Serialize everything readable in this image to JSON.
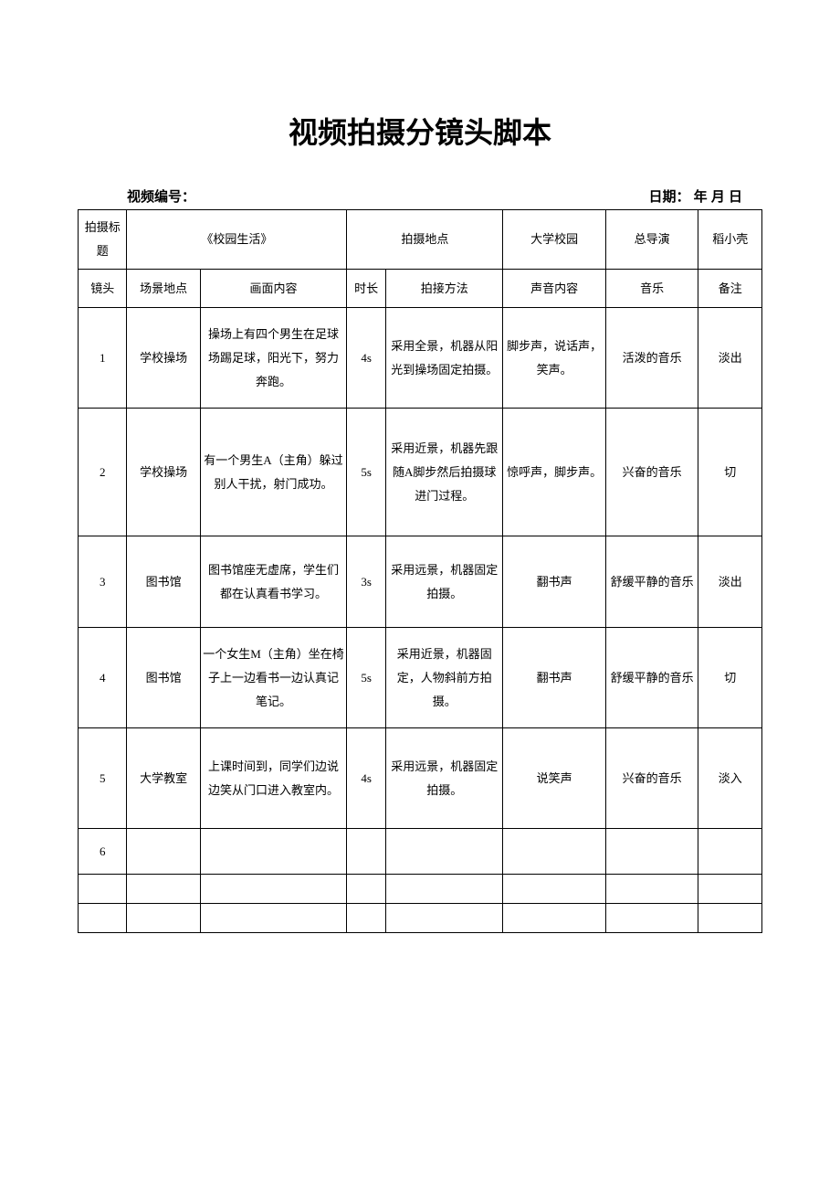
{
  "doc_title": "视频拍摄分镜头脚本",
  "info_label_left": "视频编号：",
  "info_label_right": "日期：  年 月 日",
  "meta": {
    "shoot_title_label": "拍摄标题",
    "shoot_title_value": "《校园生活》",
    "shoot_location_label": "拍摄地点",
    "shoot_location_value": "大学校园",
    "director_label": "总导演",
    "director_value": "稻小壳"
  },
  "columns": {
    "shot": "镜头",
    "location": "场景地点",
    "content": "画面内容",
    "duration": "时长",
    "method": "拍接方法",
    "sound": "声音内容",
    "music": "音乐",
    "note": "备注"
  },
  "rows": [
    {
      "shot": "1",
      "location": "学校操场",
      "content": "操场上有四个男生在足球场踢足球，阳光下，努力奔跑。",
      "duration": "4s",
      "method": "采用全景，机器从阳光到操场固定拍摄。",
      "sound": "脚步声，说话声，笑声。",
      "music": "活泼的音乐",
      "note": "淡出",
      "height": "normal"
    },
    {
      "shot": "2",
      "location": "学校操场",
      "content": "有一个男生A（主角）躲过别人干扰，射门成功。",
      "duration": "5s",
      "method": "采用近景，机器先跟随A脚步然后拍摄球进门过程。",
      "sound": "惊呼声，脚步声。",
      "music": "兴奋的音乐",
      "note": "切",
      "height": "tall"
    },
    {
      "shot": "3",
      "location": "图书馆",
      "content": "图书馆座无虚席，学生们都在认真看书学习。",
      "duration": "3s",
      "method": "采用远景，机器固定拍摄。",
      "sound": "翻书声",
      "music": "舒缓平静的音乐",
      "note": "淡出",
      "height": "short"
    },
    {
      "shot": "4",
      "location": "图书馆",
      "content": "一个女生M（主角）坐在椅子上一边看书一边认真记笔记。",
      "duration": "5s",
      "method": "采用近景，机器固定，人物斜前方拍摄。",
      "sound": "翻书声",
      "music": "舒缓平静的音乐",
      "note": "切",
      "height": "normal"
    },
    {
      "shot": "5",
      "location": "大学教室",
      "content": "上课时间到，同学们边说边笑从门口进入教室内。",
      "duration": "4s",
      "method": "采用远景，机器固定拍摄。",
      "sound": "说笑声",
      "music": "兴奋的音乐",
      "note": "淡入",
      "height": "normal"
    },
    {
      "shot": "6",
      "location": "",
      "content": "",
      "duration": "",
      "method": "",
      "sound": "",
      "music": "",
      "note": "",
      "height": "empty"
    }
  ]
}
